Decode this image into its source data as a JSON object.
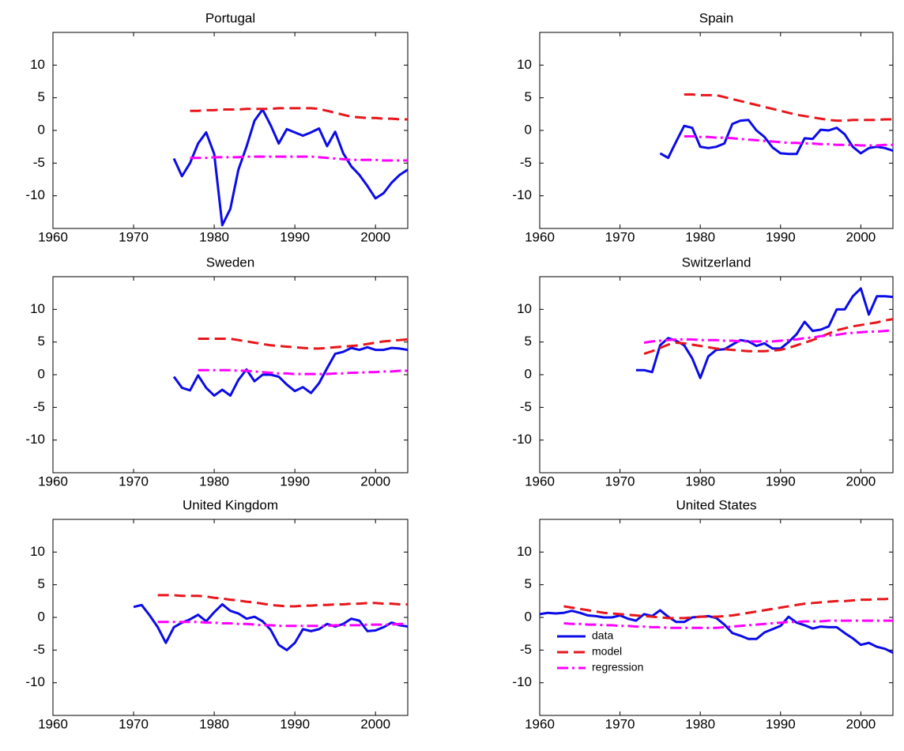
{
  "chart_data": [
    {
      "type": "line",
      "title": "Portugal",
      "xlim": [
        1960,
        2004
      ],
      "ylim": [
        -15,
        15
      ],
      "xticks": [
        1960,
        1970,
        1980,
        1990,
        2000
      ],
      "yticks": [
        -10,
        -5,
        0,
        5,
        10
      ],
      "x": [
        1975,
        1976,
        1977,
        1978,
        1979,
        1980,
        1981,
        1982,
        1983,
        1984,
        1985,
        1986,
        1987,
        1988,
        1989,
        1990,
        1991,
        1992,
        1993,
        1994,
        1995,
        1996,
        1997,
        1998,
        1999,
        2000,
        2001,
        2002,
        2003,
        2004
      ],
      "series": [
        {
          "color": "#0b0be8",
          "dash": "solid",
          "values": [
            -4.3,
            -7,
            -5,
            -2,
            -0.3,
            -3.6,
            -14.5,
            -12,
            -6,
            -2.5,
            1.5,
            3.2,
            0.8,
            -2,
            0.2,
            -0.3,
            -0.8,
            -0.3,
            0.3,
            -2.4,
            -0.2,
            -3.5,
            -5.5,
            -6.8,
            -8.5,
            -10.4,
            -9.6,
            -8,
            -6.8,
            -6
          ]
        },
        {
          "color": "#e8161b",
          "dash": "dashed",
          "values": [
            null,
            null,
            3.0,
            3.0,
            3.1,
            3.1,
            3.2,
            3.2,
            3.2,
            3.3,
            3.3,
            3.3,
            3.3,
            3.4,
            3.4,
            3.4,
            3.4,
            3.4,
            3.3,
            3.0,
            2.7,
            2.4,
            2.1,
            2.0,
            1.9,
            1.9,
            1.8,
            1.8,
            1.7,
            1.7
          ]
        },
        {
          "color": "#ff00ff",
          "dash": "dashdot",
          "values": [
            null,
            null,
            -4.2,
            -4.2,
            -4.2,
            -4.1,
            -4.1,
            -4.1,
            -4.1,
            -4.0,
            -4.0,
            -4.0,
            -4.0,
            -4.0,
            -4.0,
            -4.0,
            -4.0,
            -4.0,
            -4.1,
            -4.2,
            -4.3,
            -4.4,
            -4.5,
            -4.5,
            -4.5,
            -4.5,
            -4.6,
            -4.6,
            -4.6,
            -4.6
          ]
        }
      ]
    },
    {
      "type": "line",
      "title": "Spain",
      "xlim": [
        1960,
        2004
      ],
      "ylim": [
        -15,
        15
      ],
      "xticks": [
        1960,
        1970,
        1980,
        1990,
        2000
      ],
      "yticks": [
        -10,
        -5,
        0,
        5,
        10
      ],
      "x": [
        1975,
        1976,
        1977,
        1978,
        1979,
        1980,
        1981,
        1982,
        1983,
        1984,
        1985,
        1986,
        1987,
        1988,
        1989,
        1990,
        1991,
        1992,
        1993,
        1994,
        1995,
        1996,
        1997,
        1998,
        1999,
        2000,
        2001,
        2002,
        2003,
        2004
      ],
      "series": [
        {
          "color": "#0b0be8",
          "dash": "solid",
          "values": [
            -3.5,
            -4.2,
            -1.7,
            0.7,
            0.4,
            -2.5,
            -2.7,
            -2.5,
            -2,
            1,
            1.5,
            1.6,
            0,
            -1,
            -2.6,
            -3.5,
            -3.6,
            -3.6,
            -1.2,
            -1.3,
            0.1,
            0,
            0.4,
            -0.6,
            -2.5,
            -3.5,
            -2.7,
            -2.5,
            -2.7,
            -3.1
          ]
        },
        {
          "color": "#e8161b",
          "dash": "dashed",
          "values": [
            null,
            null,
            null,
            5.5,
            5.5,
            5.4,
            5.4,
            5.4,
            5.1,
            4.8,
            4.5,
            4.2,
            3.9,
            3.6,
            3.3,
            3.0,
            2.7,
            2.4,
            2.2,
            2.0,
            1.8,
            1.6,
            1.5,
            1.5,
            1.6,
            1.6,
            1.6,
            1.6,
            1.7,
            1.7
          ]
        },
        {
          "color": "#ff00ff",
          "dash": "dashdot",
          "values": [
            null,
            null,
            null,
            -0.9,
            -0.9,
            -1.0,
            -1.0,
            -1.1,
            -1.1,
            -1.2,
            -1.3,
            -1.4,
            -1.5,
            -1.6,
            -1.7,
            -1.8,
            -1.9,
            -1.9,
            -2.0,
            -2.0,
            -2.1,
            -2.1,
            -2.2,
            -2.2,
            -2.2,
            -2.3,
            -2.3,
            -2.3,
            -2.2,
            -2.2
          ]
        }
      ]
    },
    {
      "type": "line",
      "title": "Sweden",
      "xlim": [
        1960,
        2004
      ],
      "ylim": [
        -15,
        15
      ],
      "xticks": [
        1960,
        1970,
        1980,
        1990,
        2000
      ],
      "yticks": [
        -10,
        -5,
        0,
        5,
        10
      ],
      "x": [
        1975,
        1976,
        1977,
        1978,
        1979,
        1980,
        1981,
        1982,
        1983,
        1984,
        1985,
        1986,
        1987,
        1988,
        1989,
        1990,
        1991,
        1992,
        1993,
        1994,
        1995,
        1996,
        1997,
        1998,
        1999,
        2000,
        2001,
        2002,
        2003,
        2004
      ],
      "series": [
        {
          "color": "#0b0be8",
          "dash": "solid",
          "values": [
            -0.3,
            -2,
            -2.4,
            -0.1,
            -2,
            -3.2,
            -2.3,
            -3.2,
            -0.8,
            0.8,
            -1,
            0,
            0,
            -0.3,
            -1.5,
            -2.5,
            -1.9,
            -2.8,
            -1.3,
            1,
            3.2,
            3.5,
            4.1,
            3.8,
            4.2,
            3.8,
            3.8,
            4.1,
            4,
            3.8
          ]
        },
        {
          "color": "#e8161b",
          "dash": "dashed",
          "values": [
            null,
            null,
            null,
            5.5,
            5.5,
            5.5,
            5.5,
            5.5,
            5.3,
            5.1,
            4.9,
            4.7,
            4.5,
            4.4,
            4.3,
            4.2,
            4.1,
            4.0,
            4.0,
            4.1,
            4.2,
            4.3,
            4.4,
            4.5,
            4.7,
            4.9,
            5.1,
            5.2,
            5.3,
            5.4
          ]
        },
        {
          "color": "#ff00ff",
          "dash": "dashdot",
          "values": [
            null,
            null,
            null,
            0.7,
            0.7,
            0.7,
            0.7,
            0.7,
            0.6,
            0.6,
            0.5,
            0.4,
            0.3,
            0.2,
            0.2,
            0.1,
            0.1,
            0.1,
            0.1,
            0.1,
            0.2,
            0.2,
            0.3,
            0.3,
            0.4,
            0.4,
            0.5,
            0.5,
            0.6,
            0.6
          ]
        }
      ]
    },
    {
      "type": "line",
      "title": "Switzerland",
      "xlim": [
        1960,
        2004
      ],
      "ylim": [
        -15,
        15
      ],
      "xticks": [
        1960,
        1970,
        1980,
        1990,
        2000
      ],
      "yticks": [
        -10,
        -5,
        0,
        5,
        10
      ],
      "x": [
        1972,
        1973,
        1974,
        1975,
        1976,
        1977,
        1978,
        1979,
        1980,
        1981,
        1982,
        1983,
        1984,
        1985,
        1986,
        1987,
        1988,
        1989,
        1990,
        1991,
        1992,
        1993,
        1994,
        1995,
        1996,
        1997,
        1998,
        1999,
        2000,
        2001,
        2002,
        2003,
        2004
      ],
      "series": [
        {
          "color": "#0b0be8",
          "dash": "solid",
          "values": [
            0.7,
            0.7,
            0.4,
            4.5,
            5.6,
            5.2,
            4.5,
            2.5,
            -0.5,
            2.8,
            3.8,
            3.9,
            4.6,
            5.3,
            5.1,
            4.4,
            4.8,
            4.0,
            4.0,
            5.0,
            6.2,
            8.1,
            6.7,
            6.9,
            7.4,
            10,
            10,
            12,
            13.2,
            9.2,
            12,
            12,
            11.9
          ]
        },
        {
          "color": "#e8161b",
          "dash": "dashed",
          "values": [
            null,
            3.2,
            3.6,
            4.1,
            4.6,
            4.9,
            4.8,
            4.6,
            4.4,
            4.2,
            4.0,
            3.9,
            3.8,
            3.7,
            3.6,
            3.6,
            3.6,
            3.7,
            3.8,
            4.1,
            4.5,
            4.9,
            5.3,
            5.8,
            6.3,
            6.8,
            7.1,
            7.4,
            7.6,
            7.8,
            8.0,
            8.3,
            8.5
          ]
        },
        {
          "color": "#ff00ff",
          "dash": "dashdot",
          "values": [
            null,
            4.9,
            5.1,
            5.2,
            5.3,
            5.4,
            5.4,
            5.4,
            5.3,
            5.3,
            5.3,
            5.2,
            5.2,
            5.1,
            5.1,
            5.1,
            5.1,
            5.1,
            5.2,
            5.3,
            5.4,
            5.6,
            5.7,
            5.9,
            6.0,
            6.1,
            6.3,
            6.4,
            6.5,
            6.6,
            6.6,
            6.7,
            6.8
          ]
        }
      ]
    },
    {
      "type": "line",
      "title": "United Kingdom",
      "xlim": [
        1960,
        2004
      ],
      "ylim": [
        -15,
        15
      ],
      "xticks": [
        1960,
        1970,
        1980,
        1990,
        2000
      ],
      "yticks": [
        -10,
        -5,
        0,
        5,
        10
      ],
      "x": [
        1970,
        1971,
        1972,
        1973,
        1974,
        1975,
        1976,
        1977,
        1978,
        1979,
        1980,
        1981,
        1982,
        1983,
        1984,
        1985,
        1986,
        1987,
        1988,
        1989,
        1990,
        1991,
        1992,
        1993,
        1994,
        1995,
        1996,
        1997,
        1998,
        1999,
        2000,
        2001,
        2002,
        2003,
        2004
      ],
      "series": [
        {
          "color": "#0b0be8",
          "dash": "solid",
          "values": [
            1.6,
            1.9,
            0.3,
            -1.5,
            -3.9,
            -1.5,
            -0.8,
            -0.3,
            0.4,
            -0.6,
            0.8,
            2,
            1,
            0.6,
            -0.2,
            0.1,
            -0.6,
            -1.9,
            -4.2,
            -5,
            -3.9,
            -1.8,
            -2.1,
            -1.8,
            -1,
            -1.4,
            -1,
            -0.2,
            -0.5,
            -2.1,
            -2,
            -1.5,
            -0.8,
            -1.2,
            -1.4
          ]
        },
        {
          "color": "#e8161b",
          "dash": "dashed",
          "values": [
            null,
            null,
            null,
            3.4,
            3.4,
            3.4,
            3.3,
            3.3,
            3.3,
            3.2,
            3.0,
            2.9,
            2.7,
            2.6,
            2.4,
            2.3,
            2.1,
            1.9,
            1.8,
            1.7,
            1.7,
            1.8,
            1.8,
            1.9,
            1.9,
            2.0,
            2.0,
            2.1,
            2.1,
            2.2,
            2.2,
            2.1,
            2.1,
            2.0,
            2.0
          ]
        },
        {
          "color": "#ff00ff",
          "dash": "dashdot",
          "values": [
            null,
            null,
            null,
            -0.7,
            -0.7,
            -0.7,
            -0.7,
            -0.7,
            -0.7,
            -0.8,
            -0.8,
            -0.9,
            -0.9,
            -1.0,
            -1.0,
            -1.1,
            -1.2,
            -1.2,
            -1.3,
            -1.3,
            -1.3,
            -1.3,
            -1.3,
            -1.3,
            -1.3,
            -1.2,
            -1.2,
            -1.2,
            -1.2,
            -1.1,
            -1.1,
            -1.1,
            -1.1,
            -1.0,
            -1.0
          ]
        }
      ]
    },
    {
      "type": "line",
      "title": "United States",
      "xlim": [
        1960,
        2004
      ],
      "ylim": [
        -15,
        15
      ],
      "xticks": [
        1960,
        1970,
        1980,
        1990,
        2000
      ],
      "yticks": [
        -10,
        -5,
        0,
        5,
        10
      ],
      "legend": "lower left",
      "x": [
        1960,
        1961,
        1962,
        1963,
        1964,
        1965,
        1966,
        1967,
        1968,
        1969,
        1970,
        1971,
        1972,
        1973,
        1974,
        1975,
        1976,
        1977,
        1978,
        1979,
        1980,
        1981,
        1982,
        1983,
        1984,
        1985,
        1986,
        1987,
        1988,
        1989,
        1990,
        1991,
        1992,
        1993,
        1994,
        1995,
        1996,
        1997,
        1998,
        1999,
        2000,
        2001,
        2002,
        2003,
        2004
      ],
      "series": [
        {
          "name": "data",
          "color": "#0b0be8",
          "dash": "solid",
          "values": [
            0.5,
            0.7,
            0.6,
            0.7,
            1.0,
            0.7,
            0.3,
            0.2,
            0,
            0,
            0.3,
            -0.2,
            -0.5,
            0.5,
            0.2,
            1.1,
            0.1,
            -0.7,
            -0.7,
            0,
            0.1,
            0.2,
            -0.1,
            -1.1,
            -2.4,
            -2.8,
            -3.3,
            -3.3,
            -2.3,
            -1.8,
            -1.3,
            0.1,
            -0.8,
            -1.2,
            -1.7,
            -1.4,
            -1.5,
            -1.5,
            -2.4,
            -3.2,
            -4.2,
            -3.9,
            -4.5,
            -4.8,
            -5.4
          ]
        },
        {
          "name": "model",
          "color": "#e8161b",
          "dash": "dashed",
          "values": [
            null,
            null,
            null,
            1.7,
            1.5,
            1.3,
            1.1,
            0.9,
            0.7,
            0.6,
            0.5,
            0.4,
            0.3,
            0.2,
            0.1,
            0.0,
            -0.1,
            -0.1,
            -0.1,
            0.0,
            0.1,
            0.1,
            0.1,
            0.2,
            0.3,
            0.5,
            0.7,
            0.9,
            1.1,
            1.3,
            1.5,
            1.7,
            1.9,
            2.1,
            2.2,
            2.3,
            2.4,
            2.5,
            2.5,
            2.6,
            2.7,
            2.7,
            2.8,
            2.8,
            2.9
          ]
        },
        {
          "name": "regression",
          "color": "#ff00ff",
          "dash": "dashdot",
          "values": [
            null,
            null,
            null,
            -0.9,
            -1.0,
            -1.0,
            -1.1,
            -1.1,
            -1.2,
            -1.2,
            -1.3,
            -1.3,
            -1.4,
            -1.4,
            -1.5,
            -1.5,
            -1.6,
            -1.6,
            -1.6,
            -1.6,
            -1.6,
            -1.6,
            -1.6,
            -1.5,
            -1.4,
            -1.3,
            -1.2,
            -1.1,
            -1.0,
            -0.9,
            -0.8,
            -0.7,
            -0.7,
            -0.6,
            -0.6,
            -0.6,
            -0.5,
            -0.5,
            -0.5,
            -0.5,
            -0.5,
            -0.5,
            -0.5,
            -0.5,
            -0.5
          ]
        }
      ]
    }
  ]
}
